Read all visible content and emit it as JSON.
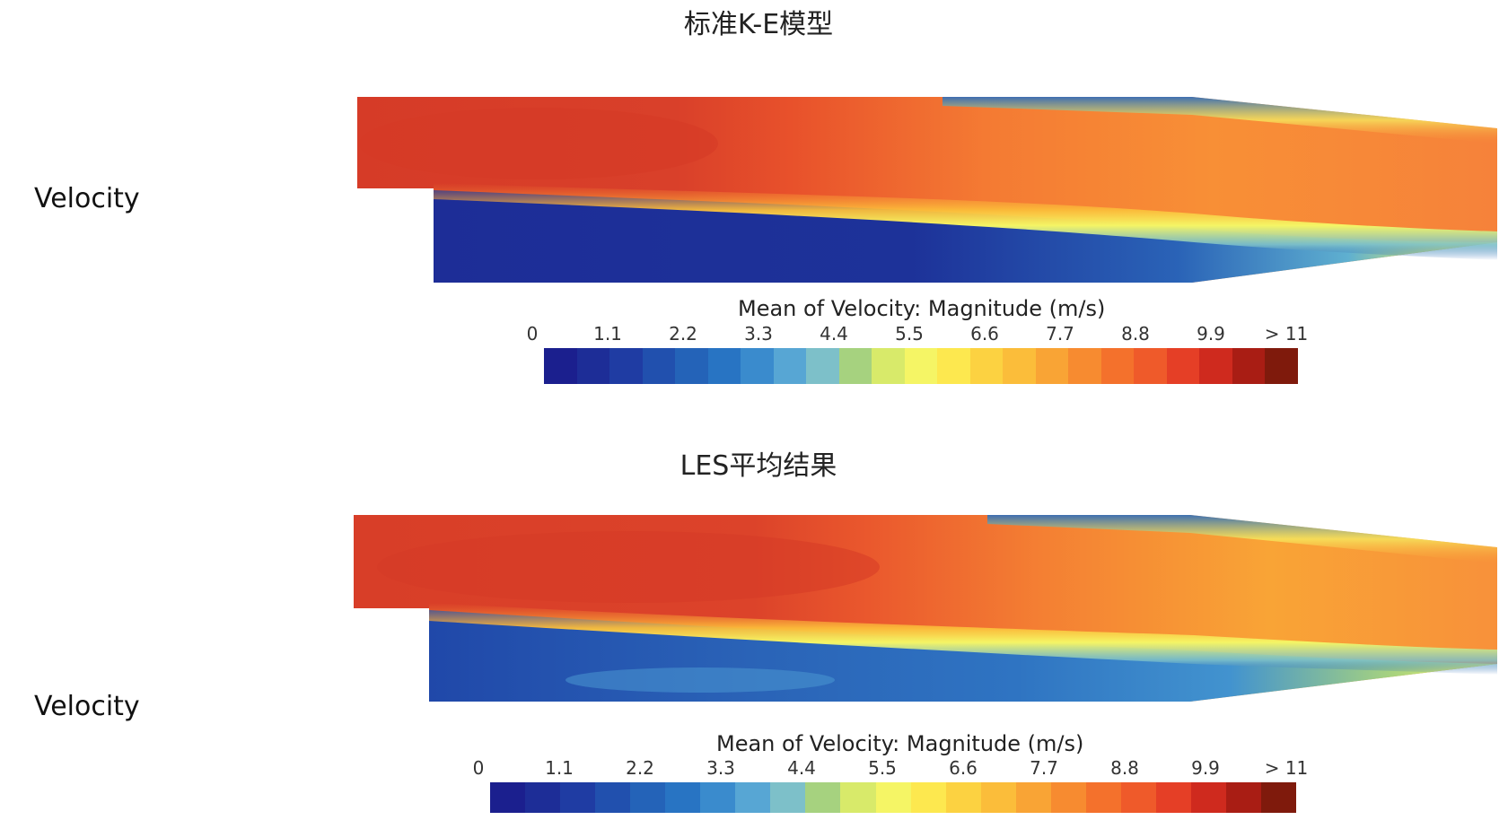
{
  "panels": [
    {
      "title": "标准K-E模型",
      "side_label": "Velocity",
      "legend_title": "Mean of Velocity: Magnitude (m/s)",
      "ticks": [
        "0",
        "1.1",
        "2.2",
        "3.3",
        "4.4",
        "5.5",
        "6.6",
        "7.7",
        "8.8",
        "9.9",
        "> 11"
      ]
    },
    {
      "title": "LES平均结果",
      "side_label": "Velocity",
      "legend_title": "Mean of Velocity: Magnitude (m/s)",
      "ticks": [
        "0",
        "1.1",
        "2.2",
        "3.3",
        "4.4",
        "5.5",
        "6.6",
        "7.7",
        "8.8",
        "9.9",
        "> 11"
      ]
    }
  ],
  "colormap": [
    "#1b1f8e",
    "#1d2d97",
    "#1f3ca3",
    "#2150ae",
    "#2463b8",
    "#2874c3",
    "#3a8bcd",
    "#57a6d4",
    "#7dc0c9",
    "#a6d27f",
    "#d8ea6a",
    "#f5f565",
    "#fde84f",
    "#fcd241",
    "#fbbd3a",
    "#f9a435",
    "#f78b30",
    "#f4712c",
    "#ef5a2a",
    "#e53f26",
    "#cf2a1e",
    "#a91d14",
    "#7f1a0c"
  ],
  "flow_colors": {
    "core_hot": "#d9402a",
    "core_red": "#e5472a",
    "orange": "#f57f33",
    "yellow": "#f9f15c",
    "recirc_dark": "#1b2f93",
    "recirc_mid": "#2563b6",
    "recirc_light": "#3b86cc"
  }
}
